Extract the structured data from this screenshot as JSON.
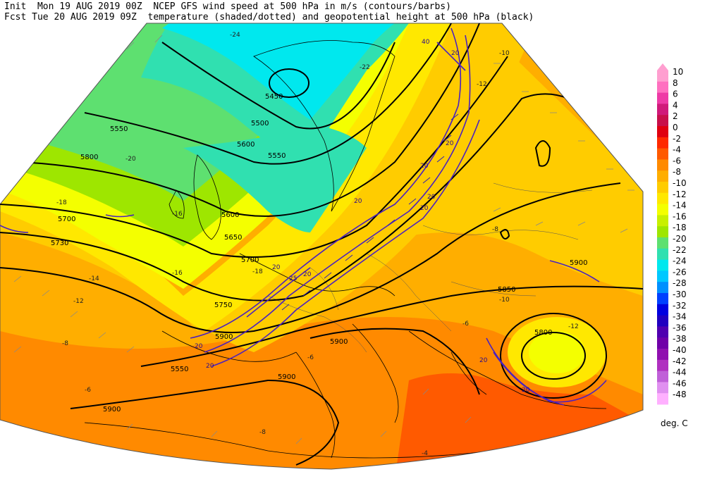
{
  "header": {
    "line1": "Init  Mon 19 AUG 2019 00Z  NCEP GFS wind speed at 500 hPa in m/s (contours/barbs)",
    "line2": "Fcst Tue 20 AUG 2019 09Z  temperature (shaded/dotted) and geopotential height at 500 hPa (black)"
  },
  "colorbar": {
    "units": "deg. C",
    "levels": [
      {
        "label": "10",
        "color": "#ff9fd0"
      },
      {
        "label": "8",
        "color": "#ff70c0"
      },
      {
        "label": "6",
        "color": "#ee3aa6"
      },
      {
        "label": "4",
        "color": "#d01a7a"
      },
      {
        "label": "2",
        "color": "#c8104a"
      },
      {
        "label": "0",
        "color": "#e00010"
      },
      {
        "label": "-2",
        "color": "#ff2a00"
      },
      {
        "label": "-4",
        "color": "#ff5a00"
      },
      {
        "label": "-6",
        "color": "#ff8a00"
      },
      {
        "label": "-8",
        "color": "#ffae00"
      },
      {
        "label": "-10",
        "color": "#ffcc00"
      },
      {
        "label": "-12",
        "color": "#ffe800"
      },
      {
        "label": "-14",
        "color": "#f4ff00"
      },
      {
        "label": "-16",
        "color": "#c8f000"
      },
      {
        "label": "-18",
        "color": "#9ee600"
      },
      {
        "label": "-20",
        "color": "#5ee070"
      },
      {
        "label": "-22",
        "color": "#30e0b0"
      },
      {
        "label": "-24",
        "color": "#00e8ee"
      },
      {
        "label": "-26",
        "color": "#00c8ff"
      },
      {
        "label": "-28",
        "color": "#0090ff"
      },
      {
        "label": "-30",
        "color": "#0040ff"
      },
      {
        "label": "-32",
        "color": "#0000e0"
      },
      {
        "label": "-34",
        "color": "#2000c0"
      },
      {
        "label": "-36",
        "color": "#5000b0"
      },
      {
        "label": "-38",
        "color": "#7000a8"
      },
      {
        "label": "-40",
        "color": "#9010b0"
      },
      {
        "label": "-42",
        "color": "#b030c0"
      },
      {
        "label": "-44",
        "color": "#c060d8"
      },
      {
        "label": "-46",
        "color": "#e090f0"
      },
      {
        "label": "-48",
        "color": "#ffb0ff"
      }
    ]
  },
  "height_labels": [
    "5450",
    "5500",
    "5550",
    "5550",
    "5600",
    "5650",
    "5700",
    "5700",
    "5730",
    "5750",
    "5800",
    "5800",
    "5850",
    "5900",
    "5900",
    "5900",
    "5900",
    "5900",
    "5550",
    "5600"
  ],
  "temp_labels": [
    "-22",
    "-20",
    "-18",
    "-16",
    "-14",
    "-12",
    "-10",
    "-8",
    "-6",
    "-4",
    "-24",
    "-12",
    "-10",
    "-8",
    "-6",
    "-16",
    "-18",
    "-12",
    "-6",
    "-8"
  ],
  "wind_labels": [
    "20",
    "20",
    "20",
    "20",
    "20",
    "25",
    "20",
    "20",
    "20",
    "20",
    "20",
    "20",
    "40",
    "20"
  ]
}
